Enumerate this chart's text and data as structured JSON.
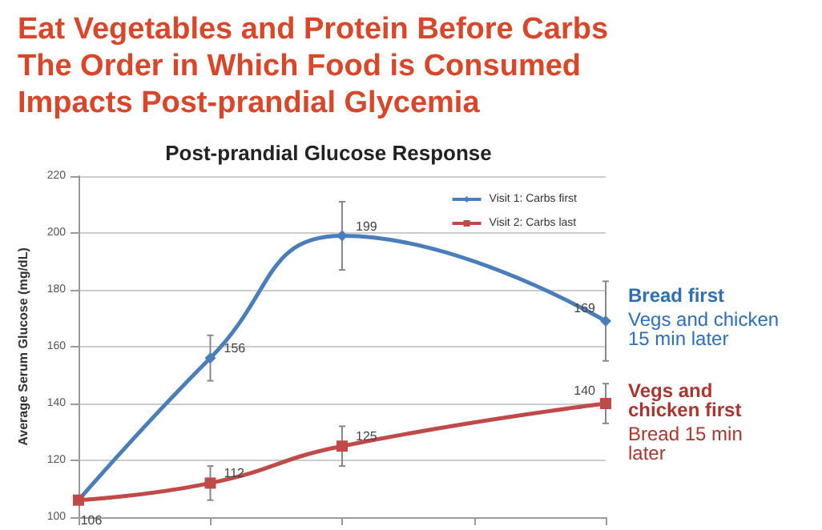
{
  "chart_data": {
    "type": "line",
    "title": "Eat Vegetables and Protein Before Carbs\nThe Order in Which Food is Consumed\nImpacts Post-prandial Glycemia",
    "subtitle": "Post-prandial Glucose Response",
    "ylabel": "Average Serum Glucose (mg/dL)",
    "categories": [
      null,
      null,
      null,
      null,
      null
    ],
    "series": [
      {
        "name": "Visit 1: Carbs first",
        "color": "#4a7ebb",
        "marker": "diamond",
        "values": [
          106,
          156,
          199,
          null,
          169
        ],
        "value_labels": [
          null,
          "156",
          "199",
          null,
          "169"
        ],
        "errors": [
          null,
          8,
          12,
          null,
          14
        ]
      },
      {
        "name": "Visit 2: Carbs last",
        "color": "#be4b48",
        "marker": "square",
        "values": [
          106,
          112,
          125,
          null,
          140
        ],
        "value_labels": [
          "106",
          "112",
          "125",
          null,
          "140"
        ],
        "errors": [
          null,
          6,
          7,
          null,
          7
        ]
      }
    ],
    "annotations": [
      "Bread first",
      "Vegs and chicken\n15 min later",
      "Vegs and\nchicken first",
      "Bread 15 min\nlater"
    ],
    "ylim": [
      100,
      220
    ],
    "yticks": [
      100,
      120,
      140,
      160,
      180,
      200,
      220
    ],
    "grid": "y",
    "legend": "top right"
  }
}
